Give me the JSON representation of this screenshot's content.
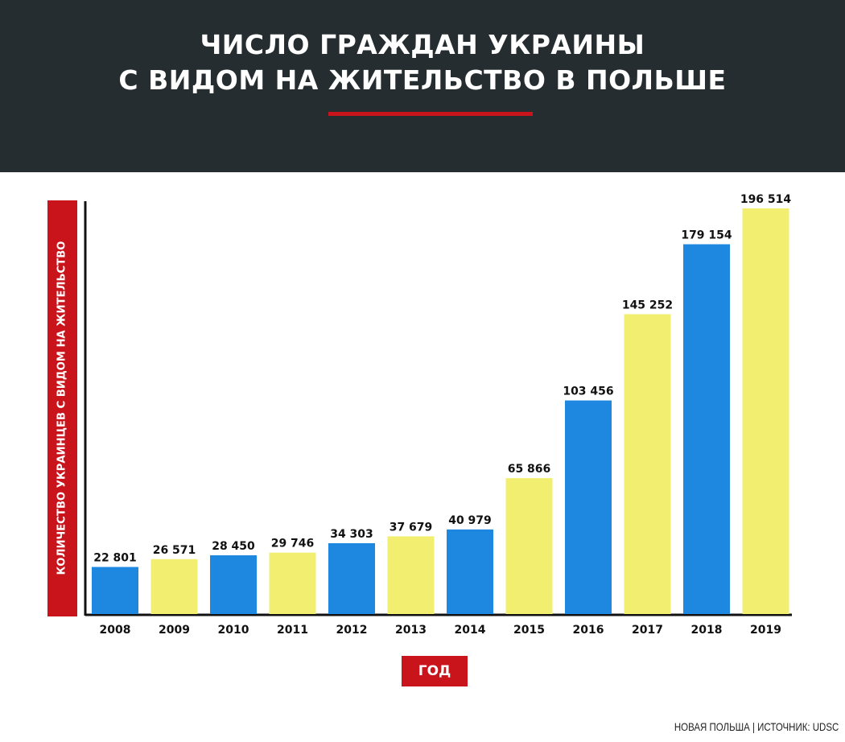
{
  "header": {
    "title_line1": "ЧИСЛО ГРАЖДАН УКРАИНЫ",
    "title_line2": "С ВИДОМ НА ЖИТЕЛЬСТВО В ПОЛЬШЕ"
  },
  "chart_data": {
    "type": "bar",
    "ylabel": "КОЛИЧЕСТВО УКРАИНЦЕВ С ВИДОМ НА ЖИТЕЛЬСТВО",
    "xlabel": "ГОД",
    "categories": [
      "2008",
      "2009",
      "2010",
      "2011",
      "2012",
      "2013",
      "2014",
      "2015",
      "2016",
      "2017",
      "2018",
      "2019"
    ],
    "values": [
      22801,
      26571,
      28450,
      29746,
      34303,
      37679,
      40979,
      65866,
      103456,
      145252,
      179154,
      196514
    ],
    "value_labels": [
      "22 801",
      "26 571",
      "28 450",
      "29 746",
      "34 303",
      "37 679",
      "40 979",
      "65 866",
      "103 456",
      "145 252",
      "179 154",
      "196 514"
    ],
    "bar_colors": [
      "#1e88e0",
      "#f1ee70",
      "#1e88e0",
      "#f1ee70",
      "#1e88e0",
      "#f1ee70",
      "#1e88e0",
      "#f1ee70",
      "#1e88e0",
      "#f1ee70",
      "#1e88e0",
      "#f1ee70"
    ],
    "ylim": [
      0,
      200000
    ],
    "grid": false
  },
  "colors": {
    "header_bg": "#252d31",
    "accent_red": "#c9141c",
    "bar_blue": "#1e88e0",
    "bar_yellow": "#f1ee70"
  },
  "footer": {
    "source": "НОВАЯ ПОЛЬША | ИСТОЧНИК: UDSC"
  }
}
